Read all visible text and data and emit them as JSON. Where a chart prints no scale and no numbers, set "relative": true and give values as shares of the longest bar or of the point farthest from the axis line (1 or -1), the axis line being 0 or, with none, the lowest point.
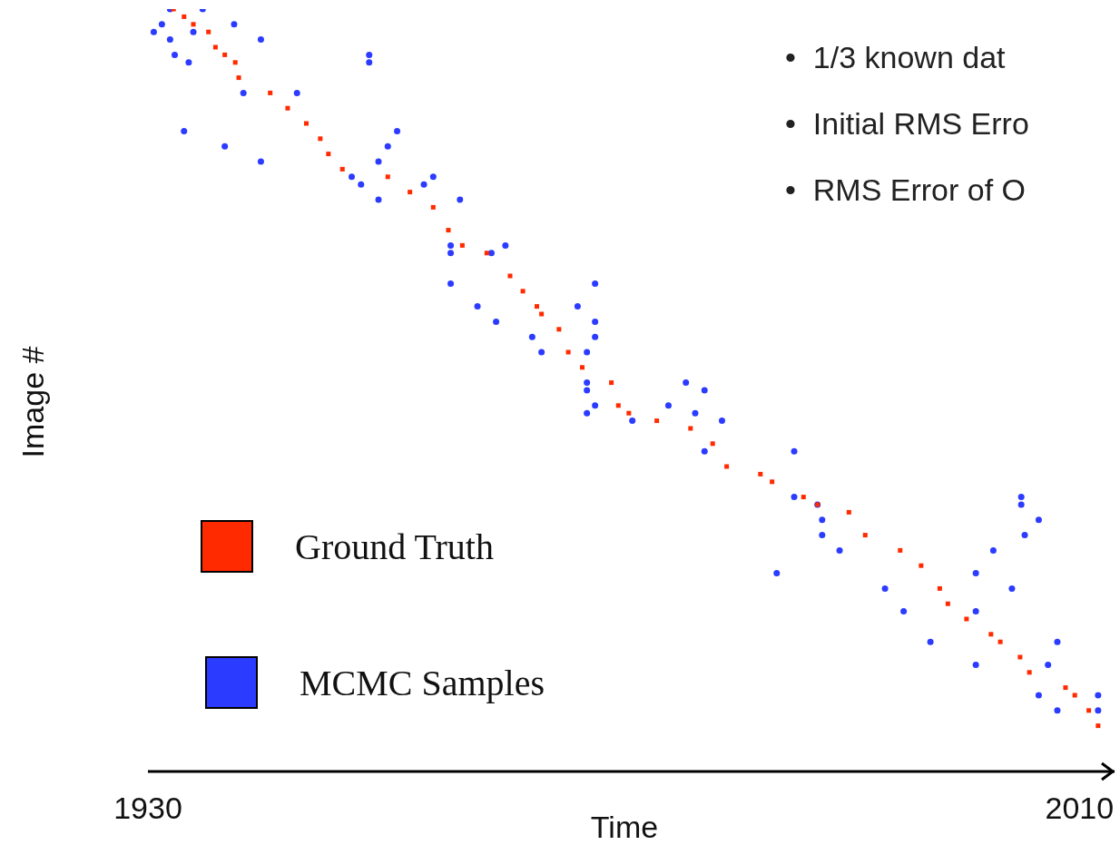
{
  "chart_data": {
    "type": "scatter",
    "xlabel": "Time",
    "ylabel": "Image #",
    "relative": true,
    "xlim": [
      1930,
      2012
    ],
    "xticks": [
      1930,
      2010
    ],
    "legend": "bottom left",
    "marker": "square",
    "annotations": [
      "•  1/3 known dat",
      "•  Initial RMS Erro",
      "•  RMS Error of O"
    ],
    "series": [
      {
        "name": "Ground Truth",
        "color": "#ff2a00",
        "x": [
          1932.2,
          1933.1,
          1933.9,
          1935.2,
          1935.8,
          1936.6,
          1937.5,
          1937.8,
          1940.5,
          1942.0,
          1943.6,
          1944.8,
          1945.5,
          1946.7,
          1950.6,
          1952.5,
          1954.5,
          1955.8,
          1957.0,
          1959.1,
          1961.1,
          1962.2,
          1963.4,
          1963.8,
          1965.3,
          1966.1,
          1967.3,
          1969.8,
          1970.4,
          1971.3,
          1973.7,
          1976.6,
          1978.5,
          1979.7,
          1982.6,
          1983.6,
          1986.3,
          1987.5,
          1990.2,
          1991.6,
          1994.6,
          1996.4,
          1998.0,
          1998.7,
          2000.3,
          2002.4,
          2003.2,
          2004.9,
          2005.7,
          2008.8,
          2009.6,
          2010.8,
          2011.6
        ],
        "values": [
          1.0,
          0.99,
          0.98,
          0.97,
          0.95,
          0.94,
          0.93,
          0.91,
          0.89,
          0.87,
          0.85,
          0.83,
          0.81,
          0.79,
          0.78,
          0.76,
          0.74,
          0.71,
          0.69,
          0.68,
          0.65,
          0.63,
          0.61,
          0.6,
          0.58,
          0.55,
          0.53,
          0.51,
          0.48,
          0.47,
          0.46,
          0.45,
          0.43,
          0.4,
          0.39,
          0.38,
          0.36,
          0.35,
          0.34,
          0.31,
          0.29,
          0.27,
          0.24,
          0.22,
          0.2,
          0.18,
          0.17,
          0.15,
          0.13,
          0.11,
          0.1,
          0.08,
          0.06
        ]
      },
      {
        "name": "MCMC Samples",
        "color": "#2b3bff",
        "marker": "circle",
        "x": [
          1931.9,
          1934.7,
          1931.2,
          1937.4,
          1930.5,
          1933.9,
          1931.9,
          1939.7,
          1932.3,
          1949.0,
          1933.5,
          1949.0,
          1938.2,
          1942.8,
          1933.1,
          1951.4,
          1936.6,
          1950.6,
          1939.7,
          1949.8,
          1947.5,
          1954.5,
          1948.3,
          1953.7,
          1949.8,
          1956.8,
          1956.0,
          1960.7,
          1956.0,
          1959.5,
          1956.0,
          1968.4,
          1958.3,
          1966.9,
          1959.9,
          1968.4,
          1963.0,
          1968.4,
          1963.8,
          1967.7,
          1967.7,
          1976.2,
          1967.7,
          1977.8,
          1968.4,
          1974.7,
          1967.7,
          1977.0,
          1971.6,
          1979.3,
          1977.8,
          1985.5,
          1985.5,
          2005.0,
          1987.5,
          2005.0,
          1987.9,
          2006.5,
          1987.9,
          2005.3,
          1989.4,
          2002.6,
          1984.0,
          2001.1,
          1993.3,
          2004.2,
          1994.9,
          2001.1,
          1997.2,
          2008.1,
          2001.1,
          2007.3,
          2006.5,
          2011.6,
          2008.1,
          2011.6
        ],
        "values": [
          1.0,
          1.0,
          0.98,
          0.98,
          0.97,
          0.97,
          0.96,
          0.96,
          0.94,
          0.94,
          0.93,
          0.93,
          0.89,
          0.89,
          0.84,
          0.84,
          0.82,
          0.82,
          0.8,
          0.8,
          0.78,
          0.78,
          0.77,
          0.77,
          0.75,
          0.75,
          0.69,
          0.69,
          0.68,
          0.68,
          0.64,
          0.64,
          0.61,
          0.61,
          0.59,
          0.59,
          0.57,
          0.57,
          0.55,
          0.55,
          0.51,
          0.51,
          0.5,
          0.5,
          0.48,
          0.48,
          0.47,
          0.47,
          0.46,
          0.46,
          0.42,
          0.42,
          0.36,
          0.36,
          0.35,
          0.35,
          0.33,
          0.33,
          0.31,
          0.31,
          0.29,
          0.29,
          0.26,
          0.26,
          0.24,
          0.24,
          0.21,
          0.21,
          0.17,
          0.17,
          0.14,
          0.14,
          0.1,
          0.1,
          0.08,
          0.08
        ]
      }
    ]
  }
}
